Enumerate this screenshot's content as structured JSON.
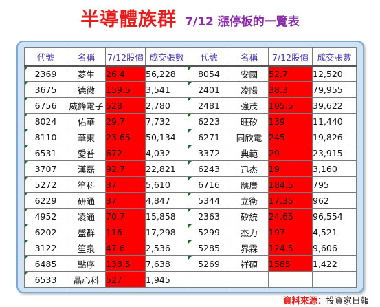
{
  "title": {
    "main": "半導體族群",
    "sub": "7/12 漲停板的一覽表"
  },
  "headers": [
    "代號",
    "名稱",
    "7/12股價",
    "成交張數",
    "代號",
    "名稱",
    "7/12股價",
    "成交張數"
  ],
  "rows": [
    [
      "2369",
      "菱生",
      "26.4",
      "56,228",
      "8054",
      "安國",
      "52.7",
      "12,520"
    ],
    [
      "3675",
      "德微",
      "159.5",
      "3,541",
      "2401",
      "凌陽",
      "38.3",
      "79,955"
    ],
    [
      "6756",
      "威鋒電子",
      "528",
      "2,780",
      "2481",
      "強茂",
      "105.5",
      "39,622"
    ],
    [
      "8024",
      "佑華",
      "29.7",
      "7,732",
      "6223",
      "旺矽",
      "139",
      "11,440"
    ],
    [
      "8110",
      "華東",
      "23.65",
      "50,134",
      "6271",
      "同欣電",
      "245",
      "19,826"
    ],
    [
      "6531",
      "愛普",
      "672",
      "4,032",
      "3372",
      "典範",
      "29",
      "23,915"
    ],
    [
      "3707",
      "漢磊",
      "92.7",
      "22,821",
      "6243",
      "迅杰",
      "19",
      "3,160"
    ],
    [
      "5272",
      "笙科",
      "37",
      "5,610",
      "6716",
      "應廣",
      "184.5",
      "795"
    ],
    [
      "6229",
      "研通",
      "37",
      "4,847",
      "5344",
      "立衛",
      "17.35",
      "962"
    ],
    [
      "4952",
      "凌通",
      "70.7",
      "15,858",
      "2363",
      "矽統",
      "24.65",
      "96,554"
    ],
    [
      "6202",
      "盛群",
      "116",
      "17,298",
      "5299",
      "杰力",
      "197",
      "4,521"
    ],
    [
      "3122",
      "笙泉",
      "47.6",
      "2,536",
      "5285",
      "界霖",
      "124.5",
      "9,606"
    ],
    [
      "6485",
      "點序",
      "138.5",
      "7,638",
      "5269",
      "祥碩",
      "1585",
      "1,422"
    ],
    [
      "6533",
      "晶心科",
      "527",
      "1,945",
      "",
      "",
      "",
      ""
    ]
  ],
  "source": {
    "label": "資料來源",
    "sep": "：",
    "value": "投資家日報"
  },
  "colors": {
    "title": "#e81c1c",
    "subtitle": "#8a2aa8",
    "price_cell": "#ff0000",
    "price_text": "#ffe600",
    "header_text": "#4a3ab0",
    "panel": "#cfe3f5"
  }
}
